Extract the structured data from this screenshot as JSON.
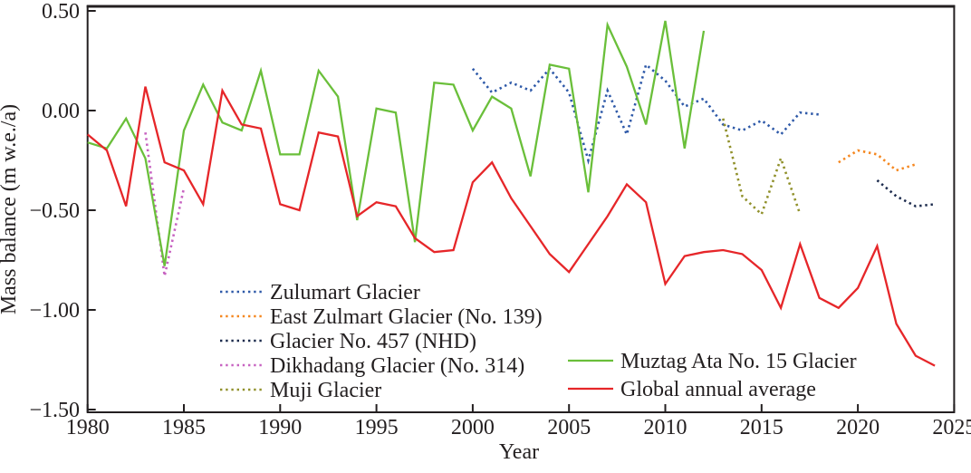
{
  "chart_data": {
    "type": "line",
    "title": "",
    "xlabel": "Year",
    "ylabel": "Mass balance (m w.e./a)",
    "xlim": [
      1980,
      2025
    ],
    "ylim": [
      -1.5,
      0.5
    ],
    "grid": false,
    "frame": true,
    "x_ticks": [
      1980,
      1985,
      1990,
      1995,
      2000,
      2005,
      2010,
      2015,
      2020,
      2025
    ],
    "x_tick_labels": [
      "1980",
      "1985",
      "1990",
      "1995",
      "2000",
      "2005",
      "2010",
      "2015",
      "2020",
      "2025"
    ],
    "y_ticks": [
      0.5,
      0.0,
      -0.5,
      -1.0,
      -1.5
    ],
    "y_tick_labels": [
      "0.50",
      "0.00",
      "−0.50",
      "−1.00",
      "−1.50"
    ],
    "axis_color": "#231f20",
    "legend_position": "inside-bottom-left-two-columns",
    "series": [
      {
        "name": "Zulumart Glacier",
        "color": "#2e59a8",
        "line_style": "dotted",
        "points": [
          [
            2000,
            0.21
          ],
          [
            2001,
            0.09
          ],
          [
            2002,
            0.14
          ],
          [
            2003,
            0.1
          ],
          [
            2004,
            0.21
          ],
          [
            2005,
            0.09
          ],
          [
            2006,
            -0.25
          ],
          [
            2007,
            0.1
          ],
          [
            2008,
            -0.12
          ],
          [
            2009,
            0.23
          ],
          [
            2010,
            0.15
          ],
          [
            2011,
            0.02
          ],
          [
            2012,
            0.06
          ],
          [
            2013,
            -0.07
          ],
          [
            2014,
            -0.1
          ],
          [
            2015,
            -0.05
          ],
          [
            2016,
            -0.12
          ],
          [
            2017,
            -0.01
          ],
          [
            2018,
            -0.02
          ]
        ]
      },
      {
        "name": "East Zulmart Glacier (No. 139)",
        "color": "#f5871f",
        "line_style": "dotted",
        "points": [
          [
            2019,
            -0.26
          ],
          [
            2020,
            -0.2
          ],
          [
            2021,
            -0.22
          ],
          [
            2022,
            -0.3
          ],
          [
            2023,
            -0.27
          ]
        ]
      },
      {
        "name": "Glacier No. 457 (NHD)",
        "color": "#1c2b4d",
        "line_style": "dotted",
        "points": [
          [
            2021,
            -0.35
          ],
          [
            2022,
            -0.43
          ],
          [
            2023,
            -0.48
          ],
          [
            2024,
            -0.47
          ]
        ]
      },
      {
        "name": "Dikhadang Glacier (No. 314)",
        "color": "#c763c1",
        "line_style": "dotted",
        "points": [
          [
            1983,
            -0.11
          ],
          [
            1984,
            -0.83
          ],
          [
            1985,
            -0.39
          ]
        ]
      },
      {
        "name": "Muji Glacier",
        "color": "#91912c",
        "line_style": "dotted",
        "points": [
          [
            2013,
            -0.04
          ],
          [
            2014,
            -0.43
          ],
          [
            2015,
            -0.52
          ],
          [
            2016,
            -0.24
          ],
          [
            2017,
            -0.52
          ]
        ]
      },
      {
        "name": "Muztag Ata No. 15 Glacier",
        "color": "#6abf3a",
        "line_style": "solid",
        "points": [
          [
            1980,
            -0.16
          ],
          [
            1981,
            -0.19
          ],
          [
            1982,
            -0.04
          ],
          [
            1983,
            -0.24
          ],
          [
            1984,
            -0.78
          ],
          [
            1985,
            -0.1
          ],
          [
            1986,
            0.13
          ],
          [
            1987,
            -0.06
          ],
          [
            1988,
            -0.1
          ],
          [
            1989,
            0.2
          ],
          [
            1990,
            -0.22
          ],
          [
            1991,
            -0.22
          ],
          [
            1992,
            0.2
          ],
          [
            1993,
            0.07
          ],
          [
            1994,
            -0.55
          ],
          [
            1995,
            0.01
          ],
          [
            1996,
            -0.01
          ],
          [
            1997,
            -0.66
          ],
          [
            1998,
            0.14
          ],
          [
            1999,
            0.13
          ],
          [
            2000,
            -0.1
          ],
          [
            2001,
            0.07
          ],
          [
            2002,
            0.01
          ],
          [
            2003,
            -0.33
          ],
          [
            2004,
            0.23
          ],
          [
            2005,
            0.21
          ],
          [
            2006,
            -0.41
          ],
          [
            2007,
            0.43
          ],
          [
            2008,
            0.22
          ],
          [
            2009,
            -0.07
          ],
          [
            2010,
            0.45
          ],
          [
            2011,
            -0.19
          ],
          [
            2012,
            0.4
          ]
        ]
      },
      {
        "name": "Global annual average",
        "color": "#e62629",
        "line_style": "solid",
        "points": [
          [
            1980,
            -0.12
          ],
          [
            1981,
            -0.2
          ],
          [
            1982,
            -0.48
          ],
          [
            1983,
            0.12
          ],
          [
            1984,
            -0.26
          ],
          [
            1985,
            -0.3
          ],
          [
            1986,
            -0.47
          ],
          [
            1987,
            0.1
          ],
          [
            1988,
            -0.07
          ],
          [
            1989,
            -0.09
          ],
          [
            1990,
            -0.47
          ],
          [
            1991,
            -0.5
          ],
          [
            1992,
            -0.11
          ],
          [
            1993,
            -0.13
          ],
          [
            1994,
            -0.53
          ],
          [
            1995,
            -0.46
          ],
          [
            1996,
            -0.48
          ],
          [
            1997,
            -0.64
          ],
          [
            1998,
            -0.71
          ],
          [
            1999,
            -0.7
          ],
          [
            2000,
            -0.36
          ],
          [
            2001,
            -0.26
          ],
          [
            2002,
            -0.44
          ],
          [
            2003,
            -0.58
          ],
          [
            2004,
            -0.72
          ],
          [
            2005,
            -0.81
          ],
          [
            2006,
            -0.67
          ],
          [
            2007,
            -0.53
          ],
          [
            2008,
            -0.37
          ],
          [
            2009,
            -0.46
          ],
          [
            2010,
            -0.87
          ],
          [
            2011,
            -0.73
          ],
          [
            2012,
            -0.71
          ],
          [
            2013,
            -0.7
          ],
          [
            2014,
            -0.72
          ],
          [
            2015,
            -0.8
          ],
          [
            2016,
            -0.99
          ],
          [
            2017,
            -0.67
          ],
          [
            2018,
            -0.94
          ],
          [
            2019,
            -0.99
          ],
          [
            2020,
            -0.89
          ],
          [
            2021,
            -0.68
          ],
          [
            2022,
            -1.07
          ],
          [
            2023,
            -1.23
          ],
          [
            2024,
            -1.28
          ]
        ]
      }
    ]
  },
  "legend": {
    "columns": [
      {
        "series_indexes": [
          0,
          1,
          2,
          3,
          4
        ]
      },
      {
        "series_indexes": [
          5,
          6
        ]
      }
    ]
  }
}
